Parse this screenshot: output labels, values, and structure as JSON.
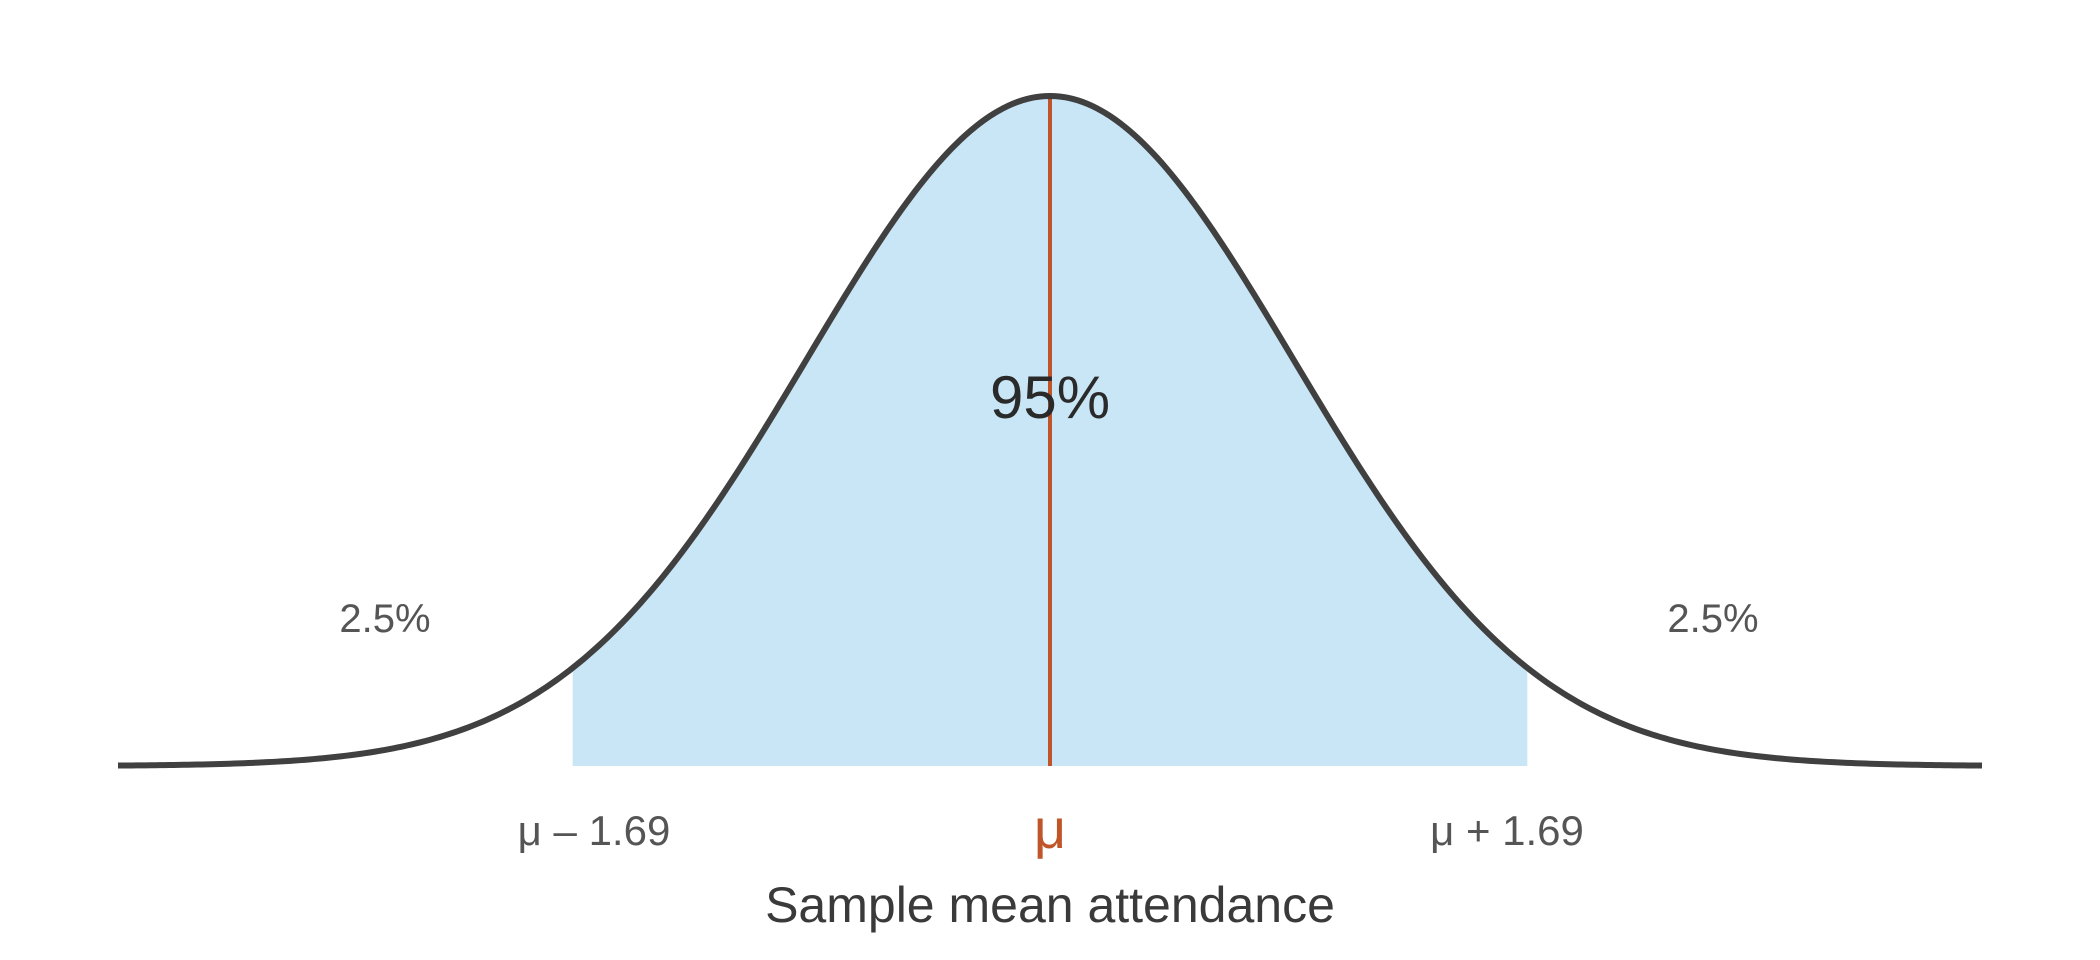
{
  "chart_data": {
    "type": "area",
    "distribution": "normal",
    "mean_label": "μ",
    "half_width": 1.69,
    "xlim": [
      -3.3,
      3.3
    ],
    "central_region": {
      "from": -1.69,
      "to": 1.69,
      "percent_label": "95%"
    },
    "tails": {
      "left": {
        "percent_label": "2.5%"
      },
      "right": {
        "percent_label": "2.5%"
      }
    },
    "tick_labels": {
      "lower": "μ – 1.69",
      "center": "μ",
      "upper": "μ + 1.69"
    },
    "xlabel": "Sample mean attendance",
    "colors": {
      "curve": "#404040",
      "fill": "#c9e6f7",
      "mean_line": "#c0552a",
      "text": "#555555",
      "center_text": "#2a2a2a"
    }
  }
}
